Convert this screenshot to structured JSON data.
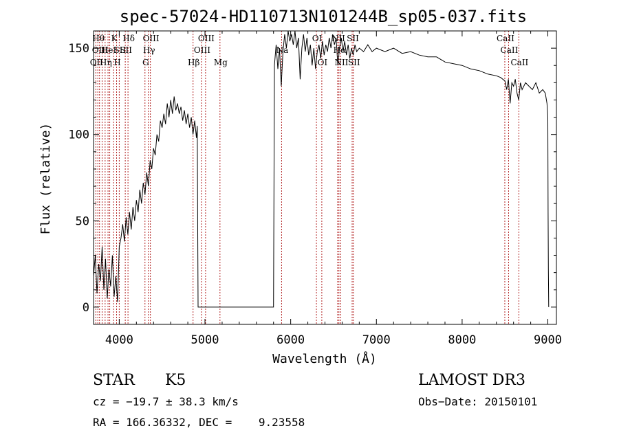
{
  "chart_data": {
    "type": "line",
    "title": "spec-57024-HD110713N101244B_sp05-037.fits",
    "xlabel": "Wavelength (Å)",
    "ylabel": "Flux (relative)",
    "xlim": [
      3700,
      9100
    ],
    "ylim": [
      -10,
      160
    ],
    "xticks": [
      4000,
      5000,
      6000,
      7000,
      8000,
      9000
    ],
    "yticks": [
      0,
      50,
      100,
      150
    ],
    "grid": false,
    "series": [
      {
        "values_description": "",
        "points": [
          [
            3700,
            18
          ],
          [
            3720,
            30
          ],
          [
            3740,
            8
          ],
          [
            3760,
            25
          ],
          [
            3780,
            15
          ],
          [
            3800,
            35
          ],
          [
            3820,
            10
          ],
          [
            3840,
            28
          ],
          [
            3860,
            5
          ],
          [
            3880,
            22
          ],
          [
            3900,
            12
          ],
          [
            3920,
            30
          ],
          [
            3940,
            6
          ],
          [
            3960,
            18
          ],
          [
            3980,
            3
          ],
          [
            4000,
            35
          ],
          [
            4020,
            40
          ],
          [
            4040,
            48
          ],
          [
            4060,
            38
          ],
          [
            4080,
            52
          ],
          [
            4100,
            42
          ],
          [
            4120,
            55
          ],
          [
            4140,
            45
          ],
          [
            4160,
            58
          ],
          [
            4180,
            50
          ],
          [
            4200,
            62
          ],
          [
            4220,
            55
          ],
          [
            4240,
            68
          ],
          [
            4260,
            60
          ],
          [
            4280,
            72
          ],
          [
            4300,
            65
          ],
          [
            4320,
            78
          ],
          [
            4340,
            70
          ],
          [
            4360,
            85
          ],
          [
            4380,
            80
          ],
          [
            4400,
            92
          ],
          [
            4420,
            88
          ],
          [
            4440,
            100
          ],
          [
            4460,
            96
          ],
          [
            4480,
            108
          ],
          [
            4500,
            104
          ],
          [
            4520,
            112
          ],
          [
            4540,
            106
          ],
          [
            4560,
            118
          ],
          [
            4580,
            110
          ],
          [
            4600,
            120
          ],
          [
            4620,
            112
          ],
          [
            4640,
            122
          ],
          [
            4660,
            114
          ],
          [
            4680,
            118
          ],
          [
            4700,
            112
          ],
          [
            4720,
            116
          ],
          [
            4740,
            108
          ],
          [
            4760,
            114
          ],
          [
            4780,
            106
          ],
          [
            4800,
            112
          ],
          [
            4820,
            104
          ],
          [
            4840,
            110
          ],
          [
            4860,
            100
          ],
          [
            4880,
            108
          ],
          [
            4900,
            98
          ],
          [
            4910,
            105
          ],
          [
            4920,
            0
          ],
          [
            5000,
            0
          ],
          [
            5200,
            0
          ],
          [
            5400,
            0
          ],
          [
            5600,
            0
          ],
          [
            5800,
            0
          ],
          [
            5810,
            140
          ],
          [
            5830,
            152
          ],
          [
            5850,
            138
          ],
          [
            5870,
            150
          ],
          [
            5890,
            128
          ],
          [
            5910,
            148
          ],
          [
            5930,
            158
          ],
          [
            5950,
            150
          ],
          [
            5970,
            160
          ],
          [
            5990,
            154
          ],
          [
            6010,
            158
          ],
          [
            6030,
            152
          ],
          [
            6050,
            160
          ],
          [
            6070,
            150
          ],
          [
            6090,
            156
          ],
          [
            6110,
            132
          ],
          [
            6130,
            150
          ],
          [
            6150,
            158
          ],
          [
            6170,
            148
          ],
          [
            6190,
            156
          ],
          [
            6210,
            146
          ],
          [
            6230,
            152
          ],
          [
            6250,
            140
          ],
          [
            6270,
            150
          ],
          [
            6290,
            138
          ],
          [
            6310,
            148
          ],
          [
            6330,
            152
          ],
          [
            6350,
            144
          ],
          [
            6370,
            154
          ],
          [
            6390,
            146
          ],
          [
            6410,
            152
          ],
          [
            6430,
            148
          ],
          [
            6450,
            156
          ],
          [
            6470,
            150
          ],
          [
            6490,
            158
          ],
          [
            6510,
            152
          ],
          [
            6530,
            156
          ],
          [
            6550,
            140
          ],
          [
            6570,
            150
          ],
          [
            6590,
            156
          ],
          [
            6610,
            148
          ],
          [
            6630,
            154
          ],
          [
            6650,
            146
          ],
          [
            6670,
            152
          ],
          [
            6690,
            144
          ],
          [
            6710,
            150
          ],
          [
            6730,
            146
          ],
          [
            6750,
            152
          ],
          [
            6770,
            148
          ],
          [
            6800,
            150
          ],
          [
            6850,
            148
          ],
          [
            6900,
            152
          ],
          [
            6950,
            148
          ],
          [
            7000,
            150
          ],
          [
            7100,
            148
          ],
          [
            7200,
            150
          ],
          [
            7300,
            147
          ],
          [
            7400,
            148
          ],
          [
            7500,
            146
          ],
          [
            7600,
            145
          ],
          [
            7700,
            145
          ],
          [
            7800,
            142
          ],
          [
            7900,
            141
          ],
          [
            8000,
            140
          ],
          [
            8100,
            138
          ],
          [
            8200,
            137
          ],
          [
            8300,
            135
          ],
          [
            8400,
            134
          ],
          [
            8450,
            133
          ],
          [
            8500,
            131
          ],
          [
            8520,
            126
          ],
          [
            8540,
            132
          ],
          [
            8560,
            118
          ],
          [
            8580,
            130
          ],
          [
            8600,
            128
          ],
          [
            8620,
            132
          ],
          [
            8640,
            124
          ],
          [
            8660,
            120
          ],
          [
            8680,
            130
          ],
          [
            8700,
            126
          ],
          [
            8740,
            130
          ],
          [
            8780,
            128
          ],
          [
            8820,
            126
          ],
          [
            8860,
            130
          ],
          [
            8900,
            124
          ],
          [
            8940,
            126
          ],
          [
            8970,
            124
          ],
          [
            8990,
            118
          ],
          [
            9000,
            110
          ],
          [
            9003,
            55
          ],
          [
            9006,
            22
          ],
          [
            9010,
            0
          ]
        ]
      }
    ],
    "lines": [
      {
        "wl": 3727,
        "label": "OII",
        "row": 3
      },
      {
        "wl": 3750,
        "label": "Hθ",
        "row": 1
      },
      {
        "wl": 3770,
        "label": "OIII",
        "row": 2
      },
      {
        "wl": 3800,
        "label": "",
        "row": 0
      },
      {
        "wl": 3835,
        "label": "Hη",
        "row": 3
      },
      {
        "wl": 3869,
        "label": "HeI",
        "row": 2
      },
      {
        "wl": 3889,
        "label": "",
        "row": 0
      },
      {
        "wl": 3934,
        "label": "K",
        "row": 1
      },
      {
        "wl": 3969,
        "label": "H",
        "row": 3
      },
      {
        "wl": 4000,
        "label": "SII",
        "row": 2
      },
      {
        "wl": 4102,
        "label": "Hδ",
        "row": 1
      },
      {
        "wl": 4070,
        "label": "SII",
        "row": 2
      },
      {
        "wl": 4300,
        "label": "G",
        "row": 3
      },
      {
        "wl": 4340,
        "label": "Hγ",
        "row": 2
      },
      {
        "wl": 4363,
        "label": "OIII",
        "row": 1
      },
      {
        "wl": 4861,
        "label": "Hβ",
        "row": 3
      },
      {
        "wl": 4959,
        "label": "OIII",
        "row": 2
      },
      {
        "wl": 5007,
        "label": "OIII",
        "row": 1
      },
      {
        "wl": 5175,
        "label": "Mg",
        "row": 3
      },
      {
        "wl": 5894,
        "label": "Na",
        "row": 2
      },
      {
        "wl": 6300,
        "label": "OI",
        "row": 1
      },
      {
        "wl": 6363,
        "label": "OI",
        "row": 3
      },
      {
        "wl": 6548,
        "label": "NII",
        "row": 1
      },
      {
        "wl": 6563,
        "label": "Hα",
        "row": 2
      },
      {
        "wl": 6584,
        "label": "NII",
        "row": 3
      },
      {
        "wl": 6717,
        "label": "SII",
        "row": 1
      },
      {
        "wl": 6731,
        "label": "SII",
        "row": 3
      },
      {
        "wl": 8498,
        "label": "CaII",
        "row": 1
      },
      {
        "wl": 8542,
        "label": "CaII",
        "row": 2
      },
      {
        "wl": 8662,
        "label": "CaII",
        "row": 3
      }
    ]
  },
  "info": {
    "object_class": "STAR",
    "subclass": "K5",
    "survey": "LAMOST DR3",
    "cz": "cz = −19.7 ± 38.3 km/s",
    "obs_date": "Obs−Date: 20150101",
    "coords": "RA = 166.36332, DEC =    9.23558"
  },
  "colors": {
    "line_marker": "#b22222",
    "spectrum": "#000000"
  }
}
